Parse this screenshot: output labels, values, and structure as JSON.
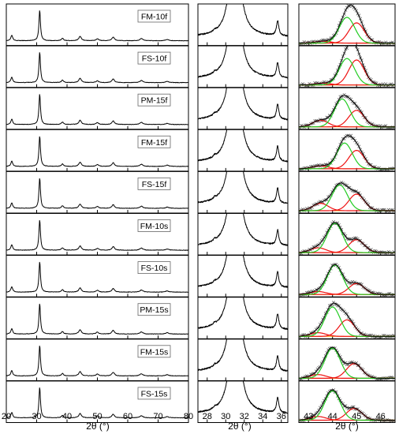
{
  "chart_data": {
    "type": "line",
    "samples": [
      "FM-10f",
      "FS-10f",
      "PM-15f",
      "FM-15f",
      "FS-15f",
      "FM-10s",
      "FS-10s",
      "PM-15s",
      "FM-15s",
      "FS-15s"
    ],
    "panels": [
      {
        "xlabel": "2θ (°)",
        "xlim": [
          20,
          80
        ],
        "xticks": [
          20,
          30,
          40,
          50,
          60,
          70,
          80
        ],
        "peaks": [
          {
            "x": 21.8,
            "height": 0.18,
            "width": 0.35
          },
          {
            "x": 31.0,
            "height": 1.0,
            "width": 0.3
          },
          {
            "x": 38.5,
            "height": 0.08,
            "width": 0.4
          },
          {
            "x": 44.3,
            "height": 0.14,
            "width": 0.5
          },
          {
            "x": 50.0,
            "height": 0.06,
            "width": 0.5
          },
          {
            "x": 55.2,
            "height": 0.12,
            "width": 0.5
          },
          {
            "x": 64.5,
            "height": 0.07,
            "width": 0.6
          },
          {
            "x": 73.0,
            "height": 0.04,
            "width": 0.6
          }
        ]
      },
      {
        "xlabel": "2θ (°)",
        "xlim": [
          27,
          36.7
        ],
        "xticks": [
          28,
          30,
          32,
          34,
          36
        ],
        "peaks": [
          {
            "x": 31.0,
            "height": 8.0,
            "width": 0.55
          },
          {
            "x": 35.6,
            "height": 0.55,
            "width": 0.15
          },
          {
            "x": 28.8,
            "height": 0.06,
            "width": 0.12
          }
        ]
      },
      {
        "xlabel": "2θ (°)",
        "xlim": [
          42.6,
          46.6
        ],
        "xticks": [
          43,
          44,
          45,
          46
        ],
        "components": [
          {
            "color": "#ee1111",
            "role": "minor peak"
          },
          {
            "color": "#22cc22",
            "role": "main peak"
          },
          {
            "color": "#ee1111",
            "role": "shoulder peak"
          }
        ],
        "fits": [
          {
            "sample": "FM-10f",
            "main": [
              44.6,
              0.7
            ],
            "shoulder": [
              45.0,
              0.55
            ],
            "minor": [
              43.6,
              0.05
            ]
          },
          {
            "sample": "FS-10f",
            "main": [
              44.6,
              0.72
            ],
            "shoulder": [
              45.0,
              0.68
            ],
            "minor": [
              43.6,
              0.05
            ]
          },
          {
            "sample": "PM-15f",
            "main": [
              44.4,
              0.76
            ],
            "shoulder": [
              45.0,
              0.45
            ],
            "minor": [
              43.5,
              0.18
            ]
          },
          {
            "sample": "FM-15f",
            "main": [
              44.5,
              0.7
            ],
            "shoulder": [
              45.0,
              0.5
            ],
            "minor": [
              43.5,
              0.08
            ]
          },
          {
            "sample": "FS-15f",
            "main": [
              44.3,
              0.7
            ],
            "shoulder": [
              45.0,
              0.45
            ],
            "minor": [
              43.5,
              0.2
            ]
          },
          {
            "sample": "FM-10s",
            "main": [
              44.1,
              0.8
            ],
            "shoulder": [
              45.0,
              0.35
            ],
            "minor": [
              43.4,
              0.13
            ]
          },
          {
            "sample": "FS-10s",
            "main": [
              44.1,
              0.8
            ],
            "shoulder": [
              45.0,
              0.3
            ],
            "minor": [
              43.4,
              0.08
            ]
          },
          {
            "sample": "PM-15s",
            "main": [
              44.0,
              0.8
            ],
            "shoulder": [
              44.6,
              0.45
            ],
            "minor": [
              43.4,
              0.1
            ]
          },
          {
            "sample": "FM-15s",
            "main": [
              44.0,
              0.82
            ],
            "shoulder": [
              44.9,
              0.4
            ],
            "minor": [
              43.4,
              0.1
            ]
          },
          {
            "sample": "FS-15s",
            "main": [
              44.0,
              0.8
            ],
            "shoulder": [
              44.9,
              0.32
            ],
            "minor": [
              43.4,
              0.1
            ]
          }
        ]
      }
    ]
  }
}
